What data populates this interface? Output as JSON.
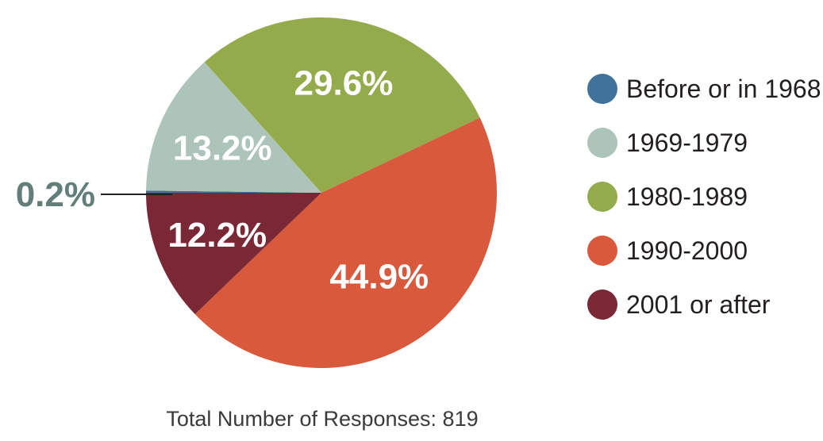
{
  "chart_data": {
    "type": "pie",
    "title": "",
    "categories": [
      "Before or in 1968",
      "1969-1979",
      "1980-1989",
      "1990-2000",
      "2001 or after"
    ],
    "values": [
      0.2,
      13.2,
      29.6,
      44.9,
      12.2
    ],
    "value_labels": [
      "0.2%",
      "13.2%",
      "29.6%",
      "44.9%",
      "12.2%"
    ],
    "colors": [
      "#41739a",
      "#adc4ba",
      "#94ab4b",
      "#d8593b",
      "#7a2836"
    ],
    "outside_label_color": "#617f78",
    "legend_placement": "right",
    "footer": "Total Number of Responses: 819"
  }
}
